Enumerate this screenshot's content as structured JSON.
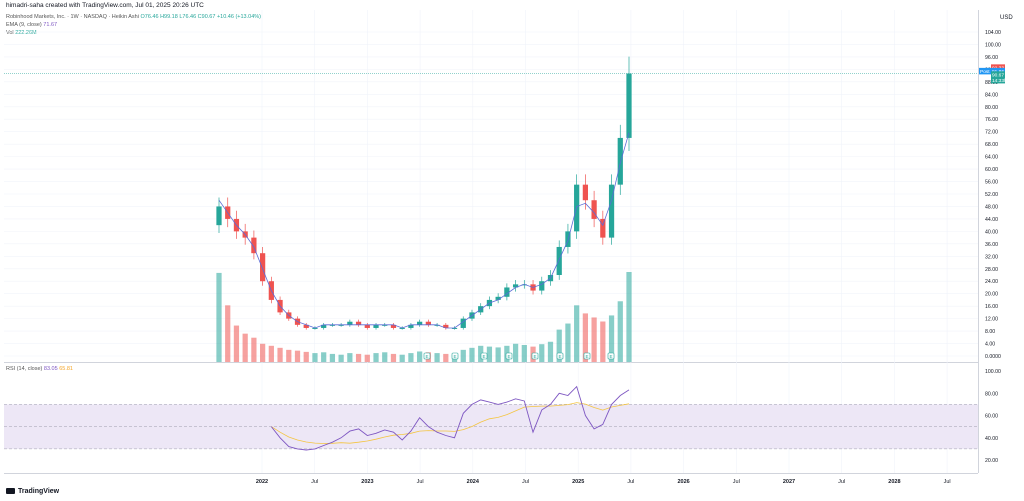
{
  "header": {
    "author_line": "himadri-saha created with TradingView.com, Jul 01, 2025 20:26 UTC"
  },
  "legend": {
    "symbol": "Robinhood Markets, Inc. · 1W · NASDAQ · Heikin Ashi",
    "ohlc": "O76.46 H99.18 L76.46 C90.67 +10.46 (+13.04%)",
    "ema_label": "EMA (9, close)",
    "ema_value": "71.67",
    "vol_label": "Vol",
    "vol_value": "222.26M",
    "rsi_label": "RSI (14, close)",
    "rsi_value": "83.05",
    "rsi_ma_value": "65.81"
  },
  "price_axis": {
    "currency": "USD",
    "ticks": [
      "104.00",
      "100.00",
      "96.00",
      "92.00",
      "88.00",
      "84.00",
      "80.00",
      "76.00",
      "72.00",
      "68.00",
      "64.00",
      "60.00",
      "56.00",
      "52.00",
      "48.00",
      "44.00",
      "40.00",
      "36.00",
      "32.00",
      "28.00",
      "24.00",
      "20.00",
      "16.00",
      "12.00",
      "8.00",
      "4.00",
      "0.0000"
    ],
    "tags": [
      {
        "text": "92.33",
        "color": "#ef5350"
      },
      {
        "text": "Post",
        "color": "#2196f3"
      },
      {
        "text": "91.86",
        "color": "#2196f3"
      },
      {
        "text": "90.67",
        "color": "#26a69a"
      },
      {
        "text": "14:33h",
        "color": "#26a69a"
      }
    ]
  },
  "rsi_axis": {
    "ticks": [
      "100.00",
      "80.00",
      "60.00",
      "40.00",
      "20.00"
    ]
  },
  "time_axis": {
    "labels": [
      "2022",
      "Jul",
      "2023",
      "Jul",
      "2024",
      "Jul",
      "2025",
      "Jul",
      "2026",
      "Jul",
      "2027",
      "Jul",
      "2028",
      "Jul"
    ]
  },
  "earnings_markers": [
    "E",
    "E",
    "E",
    "E",
    "E",
    "E",
    "E",
    "E"
  ],
  "colors": {
    "up": "#26a69a",
    "down": "#ef5350",
    "ema": "#5b6bd6",
    "rsi": "#7e57c2",
    "rsi_ma": "#f4c542",
    "rsi_band": "#ede7f6"
  },
  "footer": {
    "brand": "TradingView"
  },
  "chart_data": {
    "type": "line",
    "title": "Robinhood Markets, Inc. · 1W · NASDAQ · Heikin Ashi",
    "xlabel": "",
    "ylabel": "USD",
    "ylim": [
      0,
      104
    ],
    "x": [
      "2021-08",
      "2021-09",
      "2021-10",
      "2021-11",
      "2021-12",
      "2022-01",
      "2022-02",
      "2022-03",
      "2022-04",
      "2022-05",
      "2022-06",
      "2022-07",
      "2022-08",
      "2022-09",
      "2022-10",
      "2022-11",
      "2022-12",
      "2023-01",
      "2023-02",
      "2023-03",
      "2023-04",
      "2023-05",
      "2023-06",
      "2023-07",
      "2023-08",
      "2023-09",
      "2023-10",
      "2023-11",
      "2023-12",
      "2024-01",
      "2024-02",
      "2024-03",
      "2024-04",
      "2024-05",
      "2024-06",
      "2024-07",
      "2024-08",
      "2024-09",
      "2024-10",
      "2024-11",
      "2024-12",
      "2025-01",
      "2025-02",
      "2025-03",
      "2025-04",
      "2025-05",
      "2025-06",
      "2025-07"
    ],
    "series": [
      {
        "name": "Close",
        "values": [
          48,
          44,
          40,
          38,
          33,
          24,
          18,
          14,
          12,
          10,
          9,
          9,
          10,
          10,
          10,
          11,
          10,
          9,
          10,
          10,
          9,
          9,
          10,
          11,
          10,
          10,
          9,
          9,
          12,
          14,
          16,
          18,
          19,
          22,
          23,
          23,
          21,
          24,
          26,
          35,
          40,
          55,
          50,
          44,
          38,
          55,
          70,
          90.67
        ]
      },
      {
        "name": "EMA (9, close)",
        "values": [
          50,
          46,
          42,
          39,
          35,
          28,
          21,
          16,
          13,
          11,
          10,
          9,
          10,
          10,
          10,
          10,
          10,
          10,
          10,
          10,
          10,
          9,
          10,
          10,
          10,
          10,
          9,
          9,
          11,
          13,
          15,
          17,
          18,
          20,
          22,
          23,
          22,
          23,
          25,
          31,
          37,
          48,
          49,
          46,
          42,
          50,
          62,
          71.67
        ]
      },
      {
        "name": "RSI (14, close)",
        "values": [
          null,
          null,
          null,
          null,
          null,
          null,
          50,
          40,
          32,
          30,
          29,
          30,
          33,
          36,
          40,
          46,
          48,
          42,
          44,
          47,
          45,
          38,
          46,
          58,
          50,
          45,
          42,
          40,
          62,
          70,
          74,
          72,
          70,
          72,
          75,
          73,
          45,
          65,
          70,
          80,
          78,
          86,
          60,
          48,
          52,
          70,
          78,
          83.05
        ]
      }
    ],
    "volume_m": [
      220,
      140,
      90,
      70,
      60,
      45,
      40,
      35,
      30,
      28,
      25,
      22,
      24,
      20,
      18,
      22,
      20,
      18,
      22,
      24,
      20,
      18,
      22,
      26,
      24,
      22,
      20,
      18,
      30,
      35,
      40,
      38,
      36,
      40,
      45,
      42,
      38,
      44,
      50,
      80,
      95,
      140,
      120,
      110,
      100,
      115,
      150,
      222.26
    ],
    "rsi_ylim": [
      20,
      100
    ],
    "legend_position": "top-left",
    "grid": true
  }
}
